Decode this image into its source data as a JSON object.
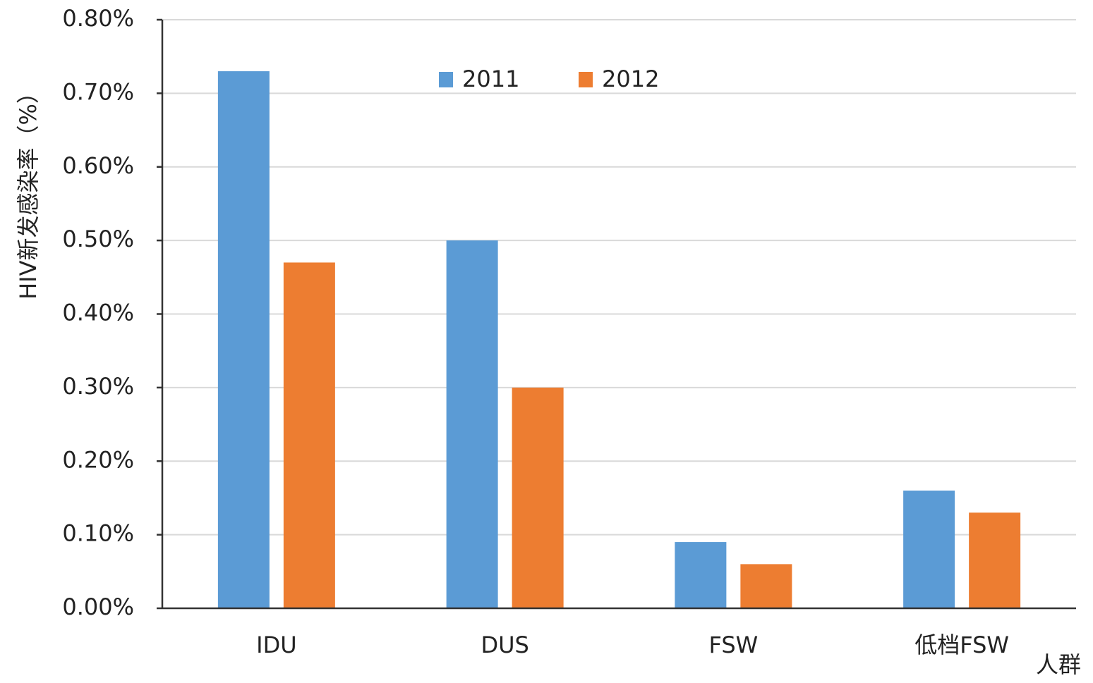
{
  "chart_data": {
    "type": "bar",
    "y_label": "HIV新发感染率（%）",
    "x_label": "人群",
    "categories": [
      "IDU",
      "DUS",
      "FSW",
      "低档FSW"
    ],
    "series": [
      {
        "name": "2011",
        "color": "#5b9bd5",
        "values": [
          0.73,
          0.5,
          0.09,
          0.16
        ]
      },
      {
        "name": "2012",
        "color": "#ed7d31",
        "values": [
          0.47,
          0.3,
          0.06,
          0.13
        ]
      }
    ],
    "ylim": [
      0,
      0.8
    ],
    "yticks": [
      {
        "value": 0,
        "label": "0.00%"
      },
      {
        "value": 0.1,
        "label": "0.10%"
      },
      {
        "value": 0.2,
        "label": "0.20%"
      },
      {
        "value": 0.3,
        "label": "0.30%"
      },
      {
        "value": 0.4,
        "label": "0.40%"
      },
      {
        "value": 0.5,
        "label": "0.50%"
      },
      {
        "value": 0.6,
        "label": "0.60%"
      },
      {
        "value": 0.7,
        "label": "0.70%"
      },
      {
        "value": 0.8,
        "label": "0.80%"
      }
    ],
    "grid": true,
    "legend": "top"
  }
}
